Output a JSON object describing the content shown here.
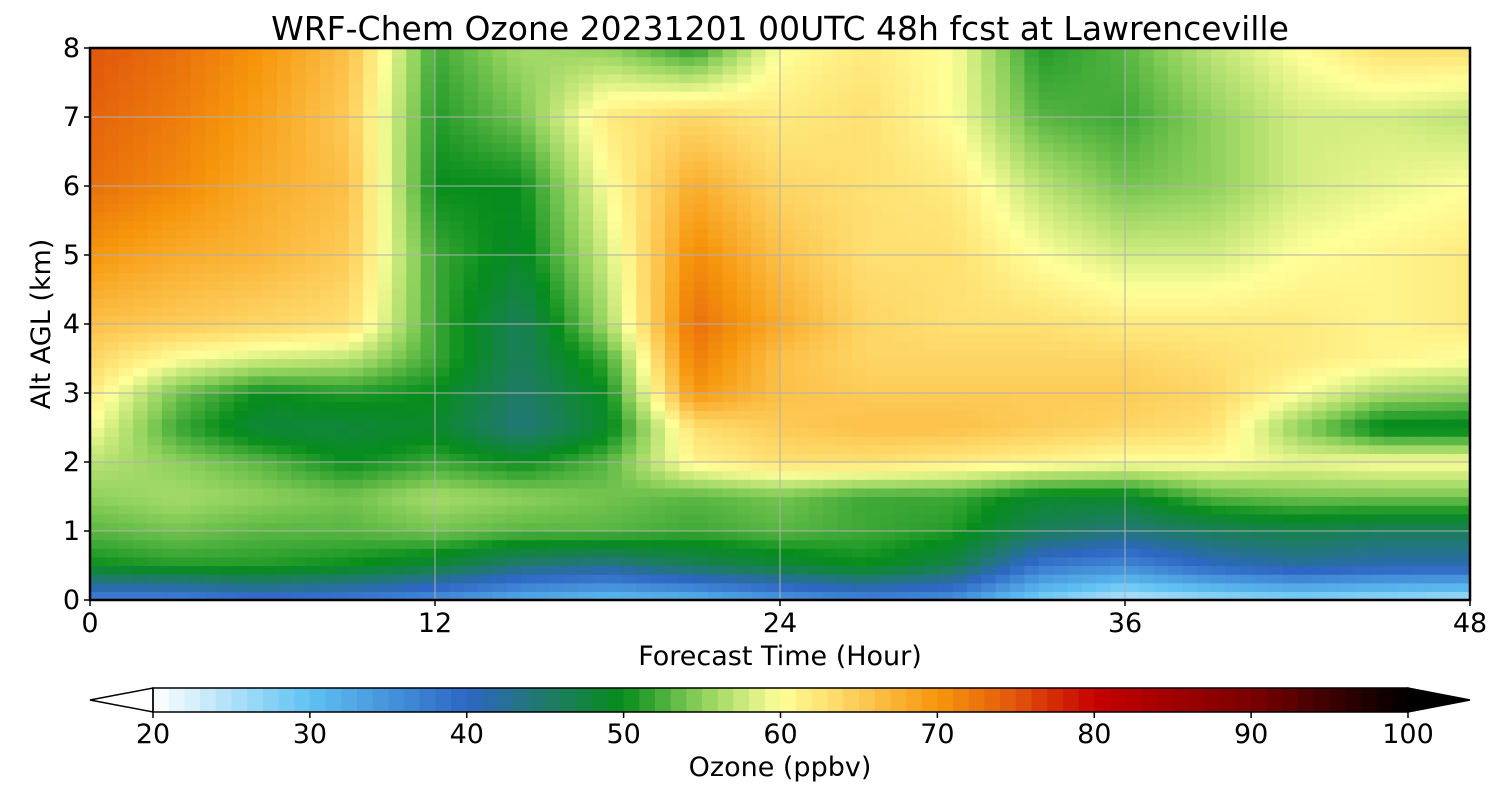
{
  "chart_data": {
    "type": "heatmap",
    "title": "WRF-Chem Ozone  20231201 00UTC 48h fcst at Lawrenceville",
    "xlabel": "Forecast Time (Hour)",
    "ylabel": "Alt AGL (km)",
    "xlim": [
      0,
      48
    ],
    "ylim": [
      0,
      8
    ],
    "x_ticks": [
      "0",
      "12",
      "24",
      "36",
      "48"
    ],
    "y_ticks": [
      "0",
      "1",
      "2",
      "3",
      "4",
      "5",
      "6",
      "7",
      "8"
    ],
    "grid": true,
    "x_hours": [
      0,
      3,
      6,
      9,
      12,
      15,
      18,
      21,
      24,
      27,
      30,
      33,
      36,
      39,
      42,
      45,
      48
    ],
    "y_km": [
      0,
      0.5,
      1,
      1.5,
      2,
      2.5,
      3,
      3.5,
      4,
      5,
      6,
      7,
      8
    ],
    "ozone_ppbv": [
      [
        36,
        36,
        38,
        37,
        35,
        32,
        30,
        31,
        34,
        36,
        35,
        28,
        24,
        26,
        27,
        26,
        25
      ],
      [
        50,
        51,
        51,
        50,
        48,
        44,
        43,
        46,
        48,
        50,
        47,
        38,
        36,
        40,
        42,
        41,
        41
      ],
      [
        53,
        54,
        53,
        53,
        54,
        53,
        53,
        52,
        53,
        52,
        51,
        46,
        44,
        46,
        47,
        46,
        46
      ],
      [
        55,
        56,
        55,
        54,
        56,
        55,
        54,
        53,
        54,
        52,
        52,
        49,
        49,
        53,
        54,
        54,
        54
      ],
      [
        57,
        55,
        53,
        50,
        52,
        50,
        53,
        61,
        63,
        63,
        62,
        61,
        60,
        60,
        59,
        60,
        60
      ],
      [
        60,
        52,
        48,
        48,
        49,
        44,
        49,
        63,
        65,
        66,
        66,
        65,
        64,
        63,
        55,
        49,
        49
      ],
      [
        62,
        54,
        50,
        51,
        50,
        45,
        50,
        70,
        66,
        65,
        65,
        65,
        65,
        64,
        60,
        56,
        55
      ],
      [
        64,
        60,
        58,
        57,
        52,
        46,
        52,
        72,
        66,
        64,
        64,
        64,
        64,
        63,
        62,
        61,
        60
      ],
      [
        66,
        65,
        64,
        63,
        52,
        46,
        56,
        73,
        68,
        64,
        63,
        63,
        62,
        62,
        62,
        61,
        62
      ],
      [
        70,
        68,
        67,
        65,
        52,
        49,
        58,
        71,
        66,
        63,
        63,
        60,
        58,
        58,
        60,
        61,
        62
      ],
      [
        73,
        71,
        68,
        66,
        50,
        50,
        60,
        68,
        64,
        63,
        62,
        57,
        54,
        55,
        58,
        59,
        60
      ],
      [
        74,
        72,
        69,
        65,
        51,
        54,
        62,
        64,
        62,
        63,
        60,
        53,
        52,
        55,
        58,
        58,
        57
      ],
      [
        75,
        73,
        70,
        66,
        52,
        56,
        55,
        51,
        60,
        62,
        60,
        51,
        53,
        57,
        60,
        63,
        63
      ]
    ],
    "colorbar": {
      "label": "Ozone  (ppbv)",
      "min": 20,
      "max": 100,
      "ticks": [
        "20",
        "30",
        "40",
        "50",
        "60",
        "70",
        "80",
        "90",
        "100"
      ],
      "extend": "both"
    },
    "colormap": [
      {
        "v": 20,
        "c": "#ffffff"
      },
      {
        "v": 30,
        "c": "#5fc1f2"
      },
      {
        "v": 40,
        "c": "#2e66c4"
      },
      {
        "v": 45,
        "c": "#1f7a6a"
      },
      {
        "v": 50,
        "c": "#078d1c"
      },
      {
        "v": 55,
        "c": "#8fd15c"
      },
      {
        "v": 60,
        "c": "#ffff99"
      },
      {
        "v": 65,
        "c": "#fdcb57"
      },
      {
        "v": 70,
        "c": "#f6960c"
      },
      {
        "v": 75,
        "c": "#e0560c"
      },
      {
        "v": 80,
        "c": "#c70000"
      },
      {
        "v": 90,
        "c": "#7a0000"
      },
      {
        "v": 100,
        "c": "#000000"
      }
    ]
  }
}
